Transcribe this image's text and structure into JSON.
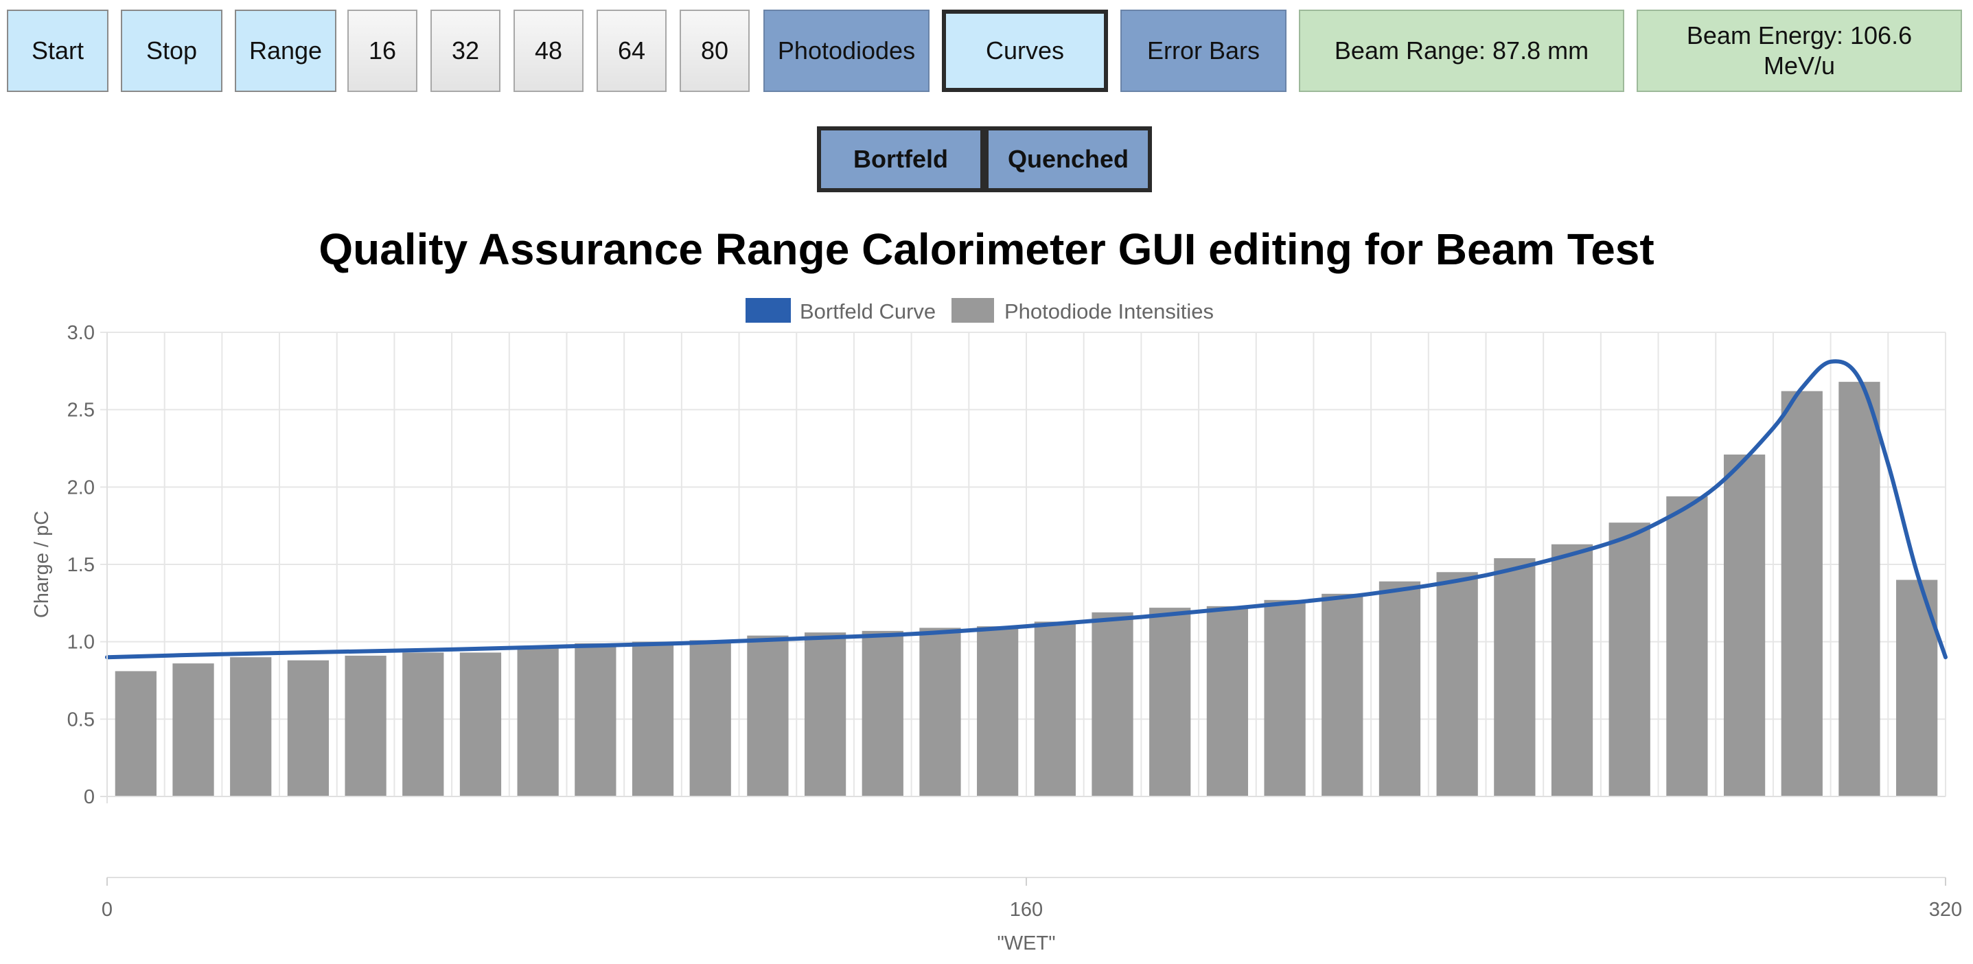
{
  "toolbar": {
    "start_label": "Start",
    "stop_label": "Stop",
    "range_label": "Range",
    "ch16_label": "16",
    "ch32_label": "32",
    "ch48_label": "48",
    "ch64_label": "64",
    "ch80_label": "80",
    "photodiodes_label": "Photodiodes",
    "curves_label": "Curves",
    "error_bars_label": "Error Bars",
    "beam_range_label": "Beam Range: 87.8 mm",
    "beam_energy_label": "Beam Energy: 106.6 MeV/u"
  },
  "curve_toggles": {
    "bortfeld_label": "Bortfeld",
    "quenched_label": "Quenched"
  },
  "colors": {
    "curve": "#2a5fae",
    "bars": "#999999",
    "light_blue_button": "#c9e9fb",
    "dark_blue_button": "#7f9fca",
    "green_info": "#c7e3c2"
  },
  "chart_data": {
    "type": "bar",
    "title": "Quality Assurance Range Calorimeter GUI editing for Beam Test",
    "xlabel": "\"WET\"",
    "ylabel": "Charge / pC",
    "legend_position": "top-center",
    "legend": [
      "Bortfeld Curve",
      "Photodiode Intensities"
    ],
    "grid": true,
    "xlim": [
      0,
      320
    ],
    "ylim": [
      0,
      3.0
    ],
    "x_ticks": [
      "0",
      "160",
      "320"
    ],
    "y_ticks": [
      "0",
      "0.5",
      "1.0",
      "1.5",
      "2.0",
      "2.5",
      "3.0"
    ],
    "series": [
      {
        "name": "Photodiode Intensities",
        "type": "bar",
        "x": [
          5,
          15,
          25,
          35,
          45,
          55,
          65,
          75,
          85,
          95,
          105,
          115,
          125,
          135,
          145,
          155,
          165,
          175,
          185,
          195,
          205,
          215,
          225,
          235,
          245,
          255,
          265,
          275,
          285,
          295,
          305,
          315
        ],
        "values": [
          0.81,
          0.86,
          0.9,
          0.88,
          0.91,
          0.93,
          0.93,
          0.97,
          0.99,
          1.0,
          1.01,
          1.04,
          1.06,
          1.07,
          1.09,
          1.1,
          1.13,
          1.19,
          1.22,
          1.23,
          1.27,
          1.31,
          1.39,
          1.45,
          1.54,
          1.63,
          1.77,
          1.94,
          2.21,
          2.62,
          2.68,
          1.4
        ]
      },
      {
        "name": "Bortfeld Curve",
        "type": "line",
        "x": [
          0,
          20,
          40,
          60,
          80,
          100,
          120,
          140,
          160,
          180,
          200,
          220,
          240,
          260,
          270,
          280,
          290,
          295,
          300,
          305,
          310,
          315,
          320
        ],
        "values": [
          0.9,
          0.92,
          0.935,
          0.95,
          0.97,
          0.99,
          1.02,
          1.05,
          1.1,
          1.16,
          1.23,
          1.31,
          1.43,
          1.62,
          1.77,
          2.0,
          2.38,
          2.64,
          2.81,
          2.7,
          2.15,
          1.45,
          0.9
        ]
      }
    ]
  }
}
